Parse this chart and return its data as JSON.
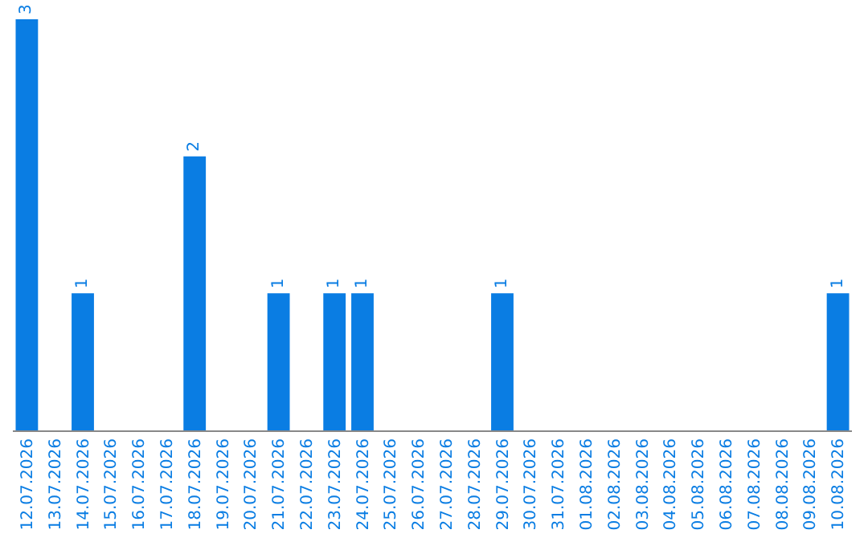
{
  "chart_data": {
    "type": "bar",
    "categories": [
      "12.07.2026",
      "13.07.2026",
      "14.07.2026",
      "15.07.2026",
      "16.07.2026",
      "17.07.2026",
      "18.07.2026",
      "19.07.2026",
      "20.07.2026",
      "21.07.2026",
      "22.07.2026",
      "23.07.2026",
      "24.07.2026",
      "25.07.2026",
      "26.07.2026",
      "27.07.2026",
      "28.07.2026",
      "29.07.2026",
      "30.07.2026",
      "31.07.2026",
      "01.08.2026",
      "02.08.2026",
      "03.08.2026",
      "04.08.2026",
      "05.08.2026",
      "06.08.2026",
      "07.08.2026",
      "08.08.2026",
      "09.08.2026",
      "10.08.2026"
    ],
    "values": [
      3,
      0,
      1,
      0,
      0,
      0,
      2,
      0,
      0,
      1,
      0,
      1,
      1,
      0,
      0,
      0,
      0,
      1,
      0,
      0,
      0,
      0,
      0,
      0,
      0,
      0,
      0,
      0,
      0,
      1
    ],
    "value_labels": [
      "3",
      null,
      "1",
      null,
      null,
      null,
      "2",
      null,
      null,
      "1",
      null,
      "1",
      "1",
      null,
      null,
      null,
      null,
      "1",
      null,
      null,
      null,
      null,
      null,
      null,
      null,
      null,
      null,
      null,
      null,
      "1"
    ],
    "color": "#0a7de3",
    "tick_labels": "x",
    "grid": false,
    "legend": false
  }
}
